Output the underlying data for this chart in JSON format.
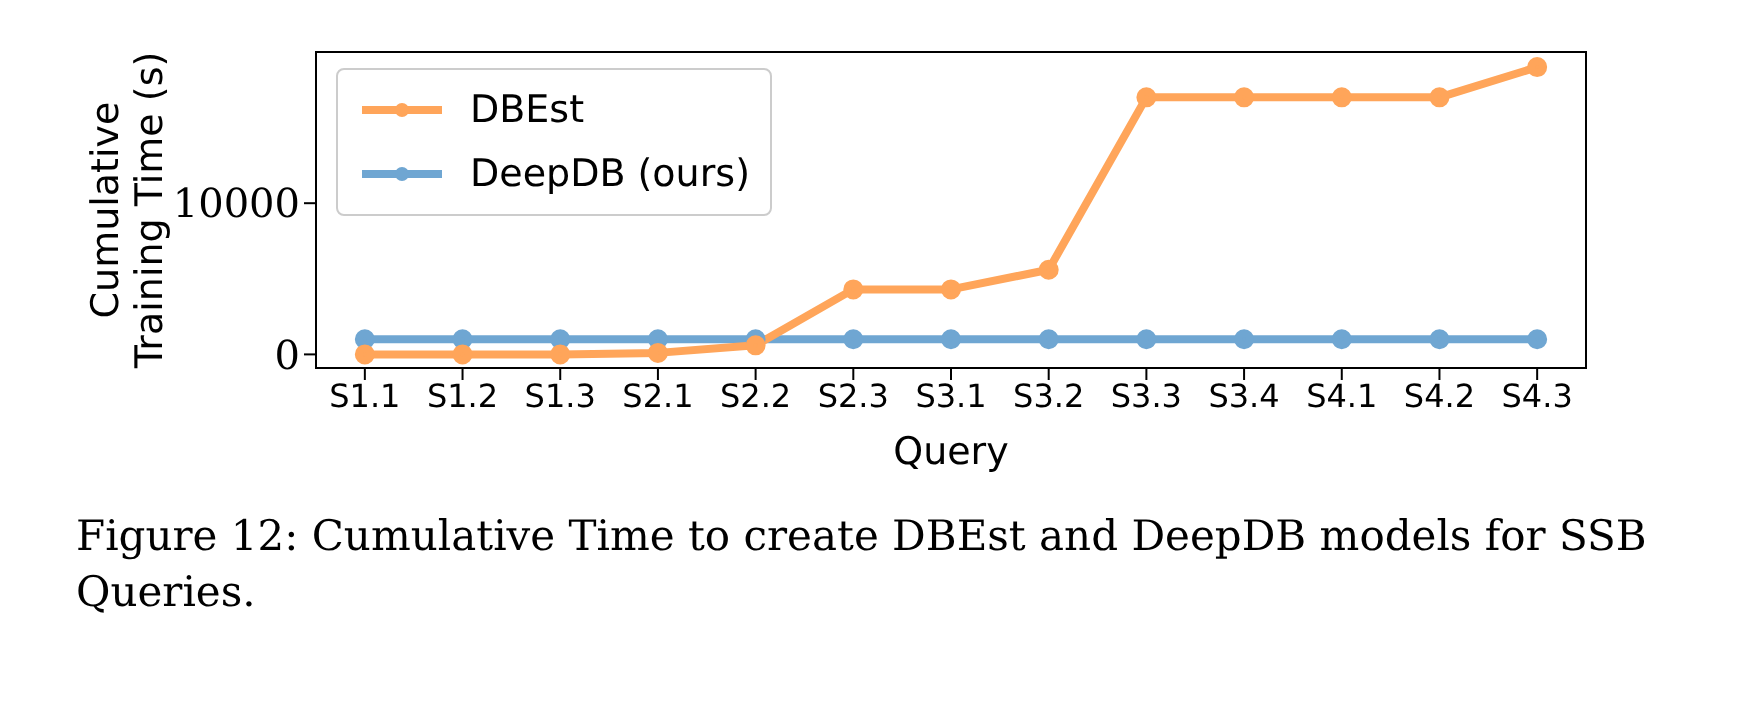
{
  "chart_data": {
    "type": "line",
    "xlabel": "Query",
    "ylabel": "Cumulative Training Time (s)",
    "categories": [
      "S1.1",
      "S1.2",
      "S1.3",
      "S2.1",
      "S2.2",
      "S2.3",
      "S3.1",
      "S3.2",
      "S3.3",
      "S3.4",
      "S4.1",
      "S4.2",
      "S4.3"
    ],
    "series": [
      {
        "name": "DBEst",
        "color": "#ffa55a",
        "values": [
          0,
          0,
          0,
          100,
          600,
          4300,
          4300,
          5600,
          17000,
          17000,
          17000,
          17000,
          19000
        ]
      },
      {
        "name": "DeepDB (ours)",
        "color": "#6fa6d2",
        "values": [
          1000,
          1000,
          1000,
          1000,
          1000,
          1000,
          1000,
          1000,
          1000,
          1000,
          1000,
          1000,
          1000
        ]
      }
    ],
    "ylim": [
      -900,
      20000
    ],
    "yticks": [
      0,
      10000
    ],
    "grid": false,
    "legend": "top left",
    "marker": "circle",
    "line_style": "solid",
    "annotations": [
      "Figure 12: Cumulative Time to create DBEst and DeepDB models for SSB Queries."
    ]
  }
}
